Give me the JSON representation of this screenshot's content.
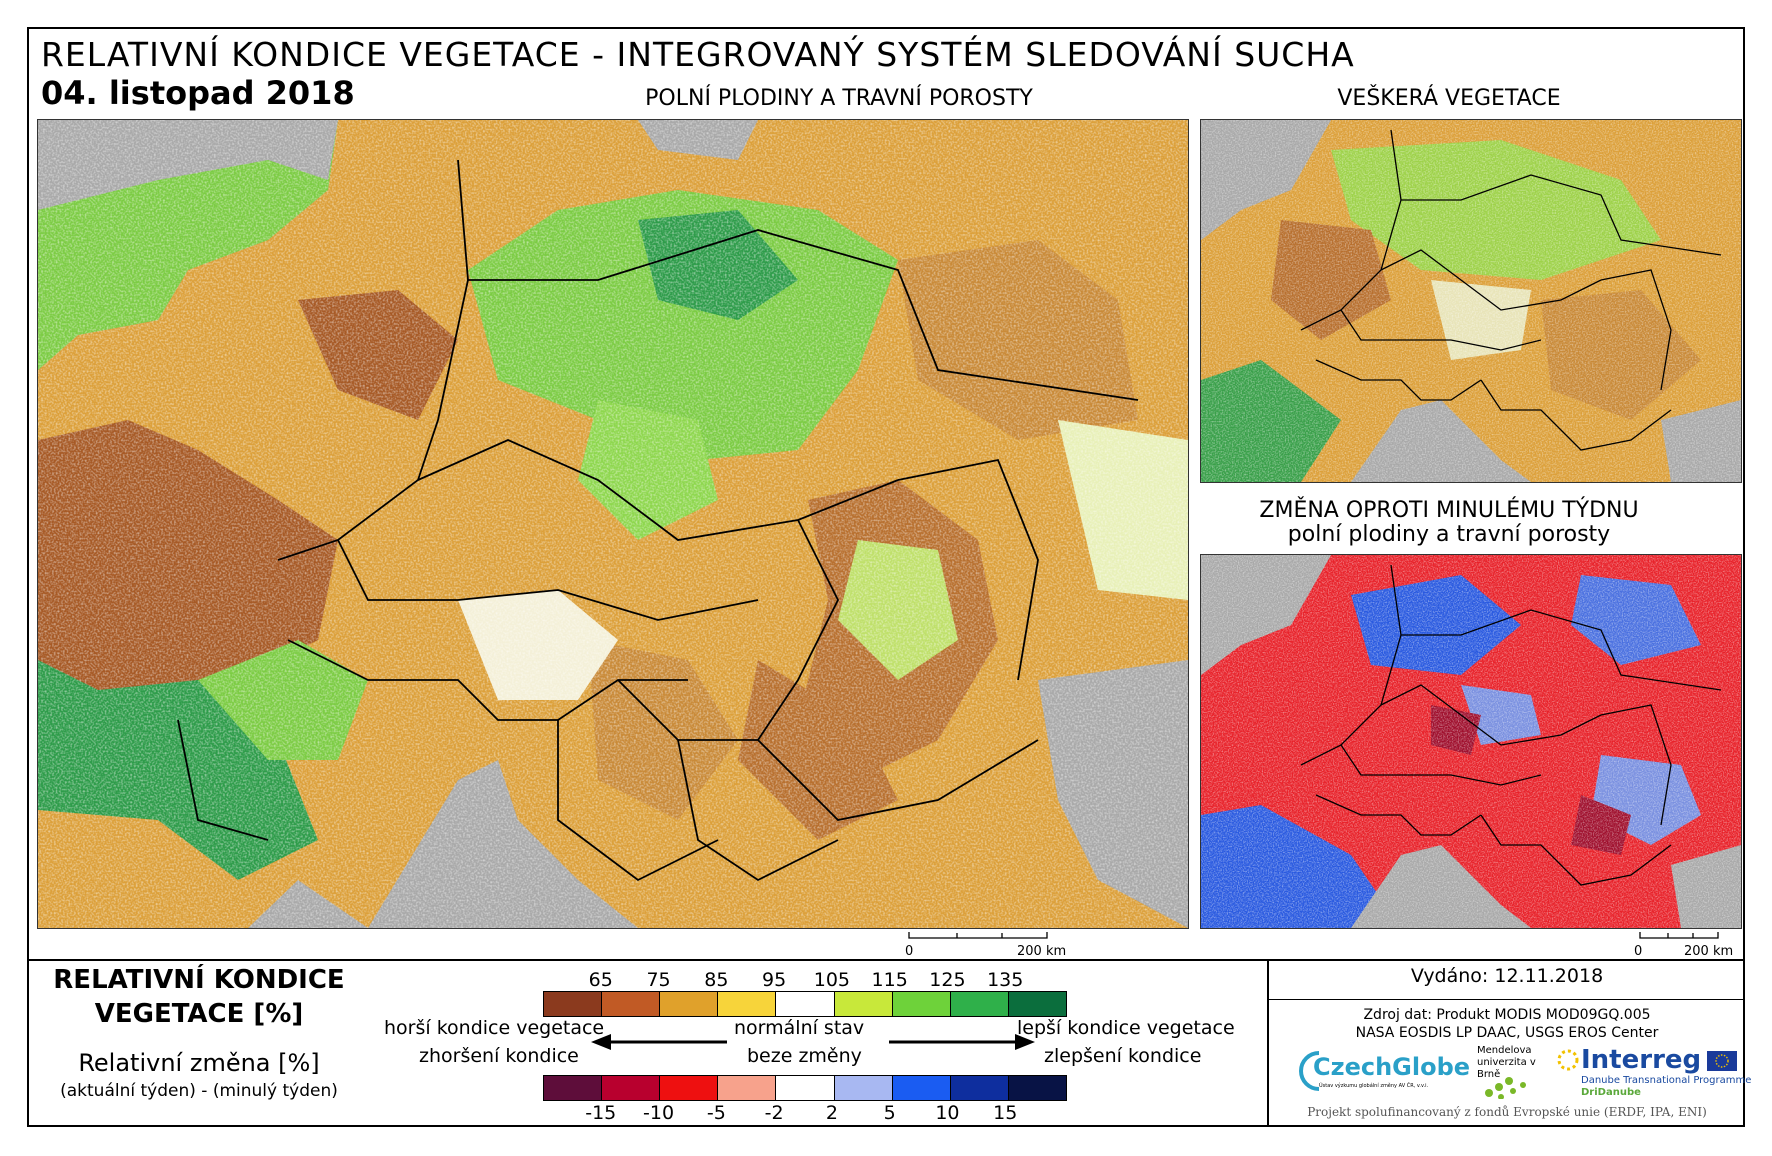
{
  "title": "RELATIVNÍ KONDICE VEGETACE - INTEGROVANÝ SYSTÉM SLEDOVÁNÍ SUCHA",
  "date": "04. listopad 2018",
  "map_main": {
    "title": "POLNÍ PLODINY A TRAVNÍ POROSTY"
  },
  "map_all": {
    "title": "VEŠKERÁ VEGETACE"
  },
  "map_change": {
    "title_line1": "ZMĚNA OPROTI MINULÉMU TÝDNU",
    "title_line2": "polní plodiny a travní porosty"
  },
  "scale_bar": {
    "zero": "0",
    "distance": "200 km"
  },
  "legend": {
    "title_line1": "RELATIVNÍ KONDICE",
    "title_line2": "VEGETACE [%]",
    "sub_title": "Relativní změna [%]",
    "sub_note": "(aktuální týden) - (minulý týden)",
    "condition_ticks": [
      "65",
      "75",
      "85",
      "95",
      "105",
      "115",
      "125",
      "135"
    ],
    "condition_colors": [
      "#8b3a1e",
      "#c15a25",
      "#e0a12b",
      "#f7d43a",
      "#ffffff",
      "#c8e83a",
      "#6ed23a",
      "#2fb04a",
      "#0b6e3d"
    ],
    "change_ticks": [
      "-15",
      "-10",
      "-5",
      "-2",
      "2",
      "5",
      "10",
      "15"
    ],
    "change_colors": [
      "#5e0d3a",
      "#b8002e",
      "#ee1010",
      "#f7a28c",
      "#ffffff",
      "#a8b8f2",
      "#1a5cf2",
      "#0e2e9e",
      "#081345"
    ],
    "left_top": "horší kondice vegetace",
    "left_bottom": "zhoršení kondice",
    "center_top": "normální stav",
    "center_bottom": "beze změny",
    "right_top": "lepší kondice vegetace",
    "right_bottom": "zlepšení kondice"
  },
  "info": {
    "issued": "Vydáno: 12.11.2018",
    "source_line1": "Zdroj dat: Produkt MODIS MOD09GQ.005",
    "source_line2": "NASA EOSDIS LP DAAC, USGS EROS Center",
    "logo_czechglobe": "CzechGlobe",
    "logo_czechglobe_sub": "Ústav výzkumu globální změny AV ČR, v.v.i.",
    "logo_mendel": "Mendelova univerzita v Brně",
    "logo_interreg": "Interreg",
    "logo_interreg_sub": "Danube Transnational Programme",
    "logo_dridanube": "DriDanube",
    "footer": "Projekt spolufinancovaný z fondů Evropské unie (ERDF, IPA, ENI)"
  },
  "colors": {
    "sea": "#a9a9a9",
    "brown": "#b8702f",
    "orange": "#dca03a",
    "green": "#7ccc44",
    "red": "#e8222a",
    "blue": "#2a5ae0"
  }
}
